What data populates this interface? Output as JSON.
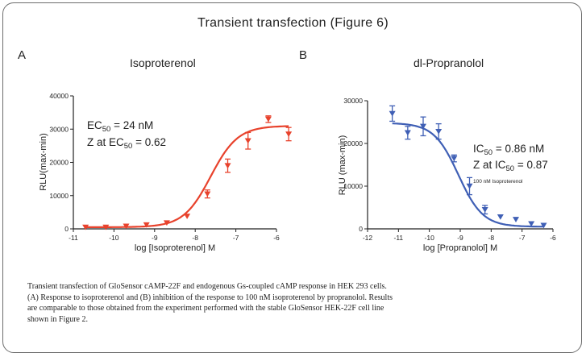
{
  "figure_title": "Transient transfection (Figure 6)",
  "caption": [
    "Transient transfection of GloSensor cAMP-22F and endogenous Gs-coupled cAMP response in HEK 293 cells.",
    "(A) Response to isoproterenol and (B) inhibition of the response to 100 nM isoproterenol by propranolol. Results",
    "are comparable to those obtained from the experiment performed with the stable GloSensor HEK-22F cell line",
    "shown in Figure 2."
  ],
  "colors": {
    "panel_a": "#e8422c",
    "panel_b": "#3f5fb5",
    "frame": "#6d6d6d"
  },
  "chart_data": [
    {
      "panel": "A",
      "type": "scatter",
      "title": "Isoproterenol",
      "xlabel": "log [Isoproterenol] M",
      "ylabel": "RLU(max-min)",
      "xlim": [
        -11,
        -6
      ],
      "ylim": [
        0,
        40000
      ],
      "xticks": [
        -11,
        -10,
        -9,
        -8,
        -7,
        -6
      ],
      "yticks": [
        0,
        10000,
        20000,
        30000,
        40000
      ],
      "tick_labels_x": [
        "-11",
        "-10",
        "-9",
        "-8",
        "-7",
        "-6"
      ],
      "tick_labels_y": [
        "0",
        "10000",
        "20000",
        "30000",
        "40000"
      ],
      "marker": "triangle-down",
      "points": [
        {
          "x": -10.7,
          "y": 500,
          "err": 0
        },
        {
          "x": -10.2,
          "y": 500,
          "err": 0
        },
        {
          "x": -9.7,
          "y": 800,
          "err": 0
        },
        {
          "x": -9.2,
          "y": 1200,
          "err": 0
        },
        {
          "x": -8.7,
          "y": 1800,
          "err": 0
        },
        {
          "x": -8.2,
          "y": 3800,
          "err": 0
        },
        {
          "x": -7.7,
          "y": 10500,
          "err": 1200
        },
        {
          "x": -7.2,
          "y": 19000,
          "err": 2000
        },
        {
          "x": -6.7,
          "y": 26500,
          "err": 2500
        },
        {
          "x": -6.2,
          "y": 33000,
          "err": 1000
        },
        {
          "x": -5.7,
          "y": 28500,
          "err": 2000
        }
      ],
      "fit": {
        "bottom": 500,
        "top": 31000,
        "logEC50": -7.62,
        "hill": 1.3,
        "direction": "up"
      },
      "annotations": [
        {
          "pre": "EC",
          "sub": "50",
          "post": " = 24 nM"
        },
        {
          "pre": "Z at EC",
          "sub": "50",
          "post": " = 0.62"
        }
      ]
    },
    {
      "panel": "B",
      "type": "scatter",
      "title": "dl-Propranolol",
      "xlabel": "log [Propranolol] M",
      "ylabel": "RLU (max-min)",
      "xlim": [
        -12,
        -6
      ],
      "ylim": [
        0,
        30000
      ],
      "xticks": [
        -12,
        -11,
        -10,
        -9,
        -8,
        -7,
        -6
      ],
      "yticks": [
        0,
        10000,
        20000,
        30000
      ],
      "tick_labels_x": [
        "-12",
        "-11",
        "-10",
        "-9",
        "-8",
        "-7",
        "-6"
      ],
      "tick_labels_y": [
        "0",
        "10000",
        "20000",
        "30000"
      ],
      "marker": "triangle-down",
      "points": [
        {
          "x": -11.2,
          "y": 27000,
          "err": 1800
        },
        {
          "x": -10.7,
          "y": 22500,
          "err": 1500
        },
        {
          "x": -10.2,
          "y": 24000,
          "err": 2200
        },
        {
          "x": -9.7,
          "y": 22800,
          "err": 1800
        },
        {
          "x": -9.2,
          "y": 16500,
          "err": 800
        },
        {
          "x": -8.7,
          "y": 10000,
          "err": 2000
        },
        {
          "x": -8.2,
          "y": 4500,
          "err": 1000
        },
        {
          "x": -7.7,
          "y": 2800,
          "err": 0
        },
        {
          "x": -7.2,
          "y": 2200,
          "err": 0
        },
        {
          "x": -6.7,
          "y": 1200,
          "err": 0
        },
        {
          "x": -6.3,
          "y": 800,
          "err": 0
        }
      ],
      "fit": {
        "bottom": 500,
        "top": 24800,
        "logEC50": -9.06,
        "hill": 1.1,
        "direction": "down"
      },
      "annotations": [
        {
          "pre": "IC",
          "sub": "50",
          "post": " = 0.86 nM"
        },
        {
          "pre": "Z at IC",
          "sub": "50",
          "post": " = 0.87"
        }
      ],
      "note": "100 nM Isoproterenol"
    }
  ]
}
